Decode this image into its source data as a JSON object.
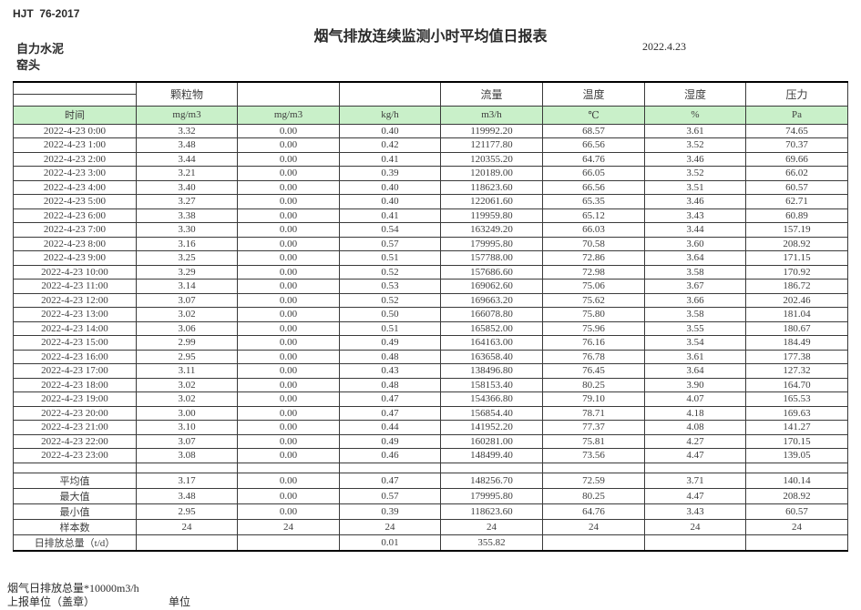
{
  "meta": {
    "standard_code": "HJT  76-2017",
    "title": "烟气排放连续监测小时平均值日报表",
    "date": "2022.4.23",
    "company": "自力水泥",
    "location": "窑头"
  },
  "colors": {
    "header_green": "#C9F0C9",
    "border": "#3a3a3a"
  },
  "table": {
    "group_headers": [
      "",
      "颗粒物",
      "",
      "",
      "流量",
      "温度",
      "湿度",
      "压力"
    ],
    "unit_row": [
      "时间",
      "mg/m3",
      "mg/m3",
      "kg/h",
      "m3/h",
      "℃",
      "%",
      "Pa"
    ],
    "rows": [
      [
        "2022-4-23 0:00",
        "3.32",
        "0.00",
        "0.40",
        "119992.20",
        "68.57",
        "3.61",
        "74.65"
      ],
      [
        "2022-4-23 1:00",
        "3.48",
        "0.00",
        "0.42",
        "121177.80",
        "66.56",
        "3.52",
        "70.37"
      ],
      [
        "2022-4-23 2:00",
        "3.44",
        "0.00",
        "0.41",
        "120355.20",
        "64.76",
        "3.46",
        "69.66"
      ],
      [
        "2022-4-23 3:00",
        "3.21",
        "0.00",
        "0.39",
        "120189.00",
        "66.05",
        "3.52",
        "66.02"
      ],
      [
        "2022-4-23 4:00",
        "3.40",
        "0.00",
        "0.40",
        "118623.60",
        "66.56",
        "3.51",
        "60.57"
      ],
      [
        "2022-4-23 5:00",
        "3.27",
        "0.00",
        "0.40",
        "122061.60",
        "65.35",
        "3.46",
        "62.71"
      ],
      [
        "2022-4-23 6:00",
        "3.38",
        "0.00",
        "0.41",
        "119959.80",
        "65.12",
        "3.43",
        "60.89"
      ],
      [
        "2022-4-23 7:00",
        "3.30",
        "0.00",
        "0.54",
        "163249.20",
        "66.03",
        "3.44",
        "157.19"
      ],
      [
        "2022-4-23 8:00",
        "3.16",
        "0.00",
        "0.57",
        "179995.80",
        "70.58",
        "3.60",
        "208.92"
      ],
      [
        "2022-4-23 9:00",
        "3.25",
        "0.00",
        "0.51",
        "157788.00",
        "72.86",
        "3.64",
        "171.15"
      ],
      [
        "2022-4-23 10:00",
        "3.29",
        "0.00",
        "0.52",
        "157686.60",
        "72.98",
        "3.58",
        "170.92"
      ],
      [
        "2022-4-23 11:00",
        "3.14",
        "0.00",
        "0.53",
        "169062.60",
        "75.06",
        "3.67",
        "186.72"
      ],
      [
        "2022-4-23 12:00",
        "3.07",
        "0.00",
        "0.52",
        "169663.20",
        "75.62",
        "3.66",
        "202.46"
      ],
      [
        "2022-4-23 13:00",
        "3.02",
        "0.00",
        "0.50",
        "166078.80",
        "75.80",
        "3.58",
        "181.04"
      ],
      [
        "2022-4-23 14:00",
        "3.06",
        "0.00",
        "0.51",
        "165852.00",
        "75.96",
        "3.55",
        "180.67"
      ],
      [
        "2022-4-23 15:00",
        "2.99",
        "0.00",
        "0.49",
        "164163.00",
        "76.16",
        "3.54",
        "184.49"
      ],
      [
        "2022-4-23 16:00",
        "2.95",
        "0.00",
        "0.48",
        "163658.40",
        "76.78",
        "3.61",
        "177.38"
      ],
      [
        "2022-4-23 17:00",
        "3.11",
        "0.00",
        "0.43",
        "138496.80",
        "76.45",
        "3.64",
        "127.32"
      ],
      [
        "2022-4-23 18:00",
        "3.02",
        "0.00",
        "0.48",
        "158153.40",
        "80.25",
        "3.90",
        "164.70"
      ],
      [
        "2022-4-23 19:00",
        "3.02",
        "0.00",
        "0.47",
        "154366.80",
        "79.10",
        "4.07",
        "165.53"
      ],
      [
        "2022-4-23 20:00",
        "3.00",
        "0.00",
        "0.47",
        "156854.40",
        "78.71",
        "4.18",
        "169.63"
      ],
      [
        "2022-4-23 21:00",
        "3.10",
        "0.00",
        "0.44",
        "141952.20",
        "77.37",
        "4.08",
        "141.27"
      ],
      [
        "2022-4-23 22:00",
        "3.07",
        "0.00",
        "0.49",
        "160281.00",
        "75.81",
        "4.27",
        "170.15"
      ],
      [
        "2022-4-23 23:00",
        "3.08",
        "0.00",
        "0.46",
        "148499.40",
        "73.56",
        "4.47",
        "139.05"
      ]
    ],
    "summary_rows": [
      [
        "平均值",
        "3.17",
        "0.00",
        "0.47",
        "148256.70",
        "72.59",
        "3.71",
        "140.14"
      ],
      [
        "最大值",
        "3.48",
        "0.00",
        "0.57",
        "179995.80",
        "80.25",
        "4.47",
        "208.92"
      ],
      [
        "最小值",
        "2.95",
        "0.00",
        "0.39",
        "118623.60",
        "64.76",
        "3.43",
        "60.57"
      ],
      [
        "样本数",
        "24",
        "24",
        "24",
        "24",
        "24",
        "24",
        "24"
      ]
    ],
    "daily_total_row": [
      "日排放总量（t/d）",
      "",
      "",
      "0.01",
      "355.82",
      "",
      "",
      ""
    ]
  },
  "footer": {
    "note": "烟气日排放总量*10000m3/h",
    "report_unit_label": "上报单位（盖章）",
    "unit_label": "单位"
  }
}
